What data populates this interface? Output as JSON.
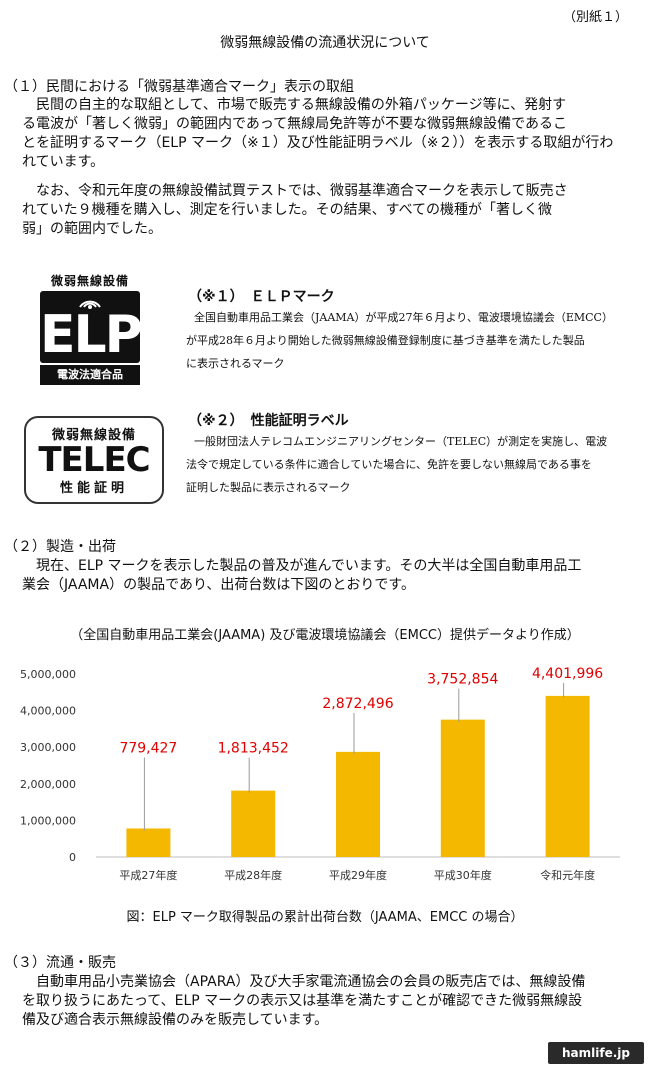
{
  "attachment_label": "（別紙１）",
  "title": "微弱無線設備の流通状況について",
  "section1": {
    "heading": "（１）民間における「微弱基準適合マーク」表示の取組",
    "para1": [
      "　民間の自主的な取組として、市場で販売する無線設備の外箱パッケージ等に、発射す",
      "る電波が「著しく微弱」の範囲内であって無線局免許等が不要な微弱無線設備であるこ",
      "とを証明するマーク（ELP マーク（※１）及び性能証明ラベル（※２））を表示する取組が行わ",
      "れています。"
    ],
    "para2": [
      "　なお、令和元年度の無線設備試買テストでは、微弱基準適合マークを表示して販売さ",
      "れていた９機種を購入し、測定を行いました。その結果、すべての機種が「著しく微",
      "弱」の範囲内でした。"
    ]
  },
  "elp_logo": {
    "top": "微弱無線設備",
    "letters": "ELP",
    "bottom": "電波法適合品"
  },
  "note1": {
    "heading": "（※１）　ＥＬＰマーク",
    "body": [
      "全国自動車用品工業会（JAAMA）が平成27年６月より、電波環境協議会（EMCC）",
      "が平成28年６月より開始した微弱無線設備登録制度に基づき基準を満たした製品",
      "に表示されるマーク"
    ]
  },
  "telec_logo": {
    "top": "微弱無線設備",
    "middle": "TELEC",
    "bottom": "性能証明"
  },
  "note2": {
    "heading": "（※２）　性能証明ラベル",
    "body": [
      "一般財団法人テレコムエンジニアリングセンター（TELEC）が測定を実施し、電波",
      "法令で規定している条件に適合していた場合に、免許を要しない無線局である事を",
      "証明した製品に表示されるマーク"
    ]
  },
  "section2": {
    "heading": "（２）製造・出荷",
    "para": [
      "　現在、ELP マークを表示した製品の普及が進んでいます。その大半は全国自動車用品工",
      "業会（JAAMA）の製品であり、出荷台数は下図のとおりです。"
    ]
  },
  "chart_caption": "（全国自動車用品工業会(JAAMA) 及び電波環境協議会（EMCC）提供データより作成）",
  "chart_data": {
    "type": "bar",
    "categories": [
      "平成27年度",
      "平成28年度",
      "平成29年度",
      "平成30年度",
      "令和元年度"
    ],
    "values": [
      779427,
      1813452,
      2872496,
      3752854,
      4401996
    ],
    "data_labels": [
      "779,427",
      "1,813,452",
      "2,872,496",
      "3,752,854",
      "4,401,996"
    ],
    "y_ticks": [
      "0",
      "1,000,000",
      "2,000,000",
      "3,000,000",
      "4,000,000",
      "5,000,000"
    ],
    "ylim": [
      0,
      5000000
    ],
    "bar_color": "#f5b800",
    "label_color": "#e00000",
    "grid": false
  },
  "figure_caption": "図：ELP マーク取得製品の累計出荷台数（JAAMA、EMCC の場合）",
  "section3": {
    "heading": "（３）流通・販売",
    "para": [
      "　自動車用品小売業協会（APARA）及び大手家電流通協会の会員の販売店では、無線設備",
      "を取り扱うにあたって、ELP マークの表示又は基準を満たすことが確認できた微弱無線設",
      "備及び適合表示無線設備のみを販売しています。"
    ]
  },
  "watermark": "hamlife.jp"
}
